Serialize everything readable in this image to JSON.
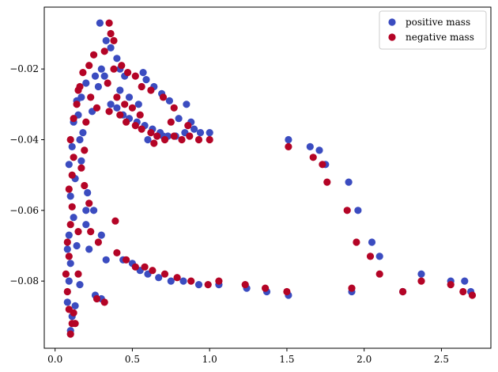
{
  "chart_data": {
    "type": "scatter",
    "title": "",
    "xlabel": "",
    "ylabel": "",
    "xlim": [
      -0.07,
      2.82
    ],
    "ylim": [
      -0.099,
      -0.0025
    ],
    "xticks": [
      0.0,
      0.5,
      1.0,
      1.5,
      2.0,
      2.5
    ],
    "xtick_labels": [
      "0.0",
      "0.5",
      "1.0",
      "1.5",
      "2.0",
      "2.5"
    ],
    "yticks": [
      -0.02,
      -0.04,
      -0.06,
      -0.08
    ],
    "ytick_labels": [
      "−0.02",
      "−0.04",
      "−0.06",
      "−0.08"
    ],
    "grid": false,
    "legend_position": "top-right",
    "series": [
      {
        "name": "positive mass",
        "color": "#3b4cc0",
        "points": [
          [
            0.29,
            -0.007
          ],
          [
            0.33,
            -0.012
          ],
          [
            0.36,
            -0.014
          ],
          [
            0.4,
            -0.017
          ],
          [
            0.3,
            -0.02
          ],
          [
            0.26,
            -0.022
          ],
          [
            0.2,
            -0.024
          ],
          [
            0.17,
            -0.028
          ],
          [
            0.15,
            -0.033
          ],
          [
            0.12,
            -0.035
          ],
          [
            0.11,
            -0.042
          ],
          [
            0.09,
            -0.047
          ],
          [
            0.13,
            -0.051
          ],
          [
            0.1,
            -0.056
          ],
          [
            0.12,
            -0.062
          ],
          [
            0.09,
            -0.067
          ],
          [
            0.08,
            -0.071
          ],
          [
            0.1,
            -0.075
          ],
          [
            0.09,
            -0.08
          ],
          [
            0.08,
            -0.086
          ],
          [
            0.11,
            -0.09
          ],
          [
            0.1,
            -0.094
          ],
          [
            0.24,
            -0.032
          ],
          [
            0.28,
            -0.025
          ],
          [
            0.32,
            -0.022
          ],
          [
            0.42,
            -0.02
          ],
          [
            0.45,
            -0.022
          ],
          [
            0.57,
            -0.021
          ],
          [
            0.59,
            -0.023
          ],
          [
            0.64,
            -0.025
          ],
          [
            0.69,
            -0.027
          ],
          [
            0.74,
            -0.029
          ],
          [
            0.85,
            -0.03
          ],
          [
            0.42,
            -0.026
          ],
          [
            0.48,
            -0.028
          ],
          [
            0.54,
            -0.03
          ],
          [
            0.36,
            -0.03
          ],
          [
            0.4,
            -0.031
          ],
          [
            0.44,
            -0.033
          ],
          [
            0.48,
            -0.034
          ],
          [
            0.53,
            -0.035
          ],
          [
            0.58,
            -0.036
          ],
          [
            0.63,
            -0.037
          ],
          [
            0.68,
            -0.038
          ],
          [
            0.73,
            -0.039
          ],
          [
            0.78,
            -0.039
          ],
          [
            0.84,
            -0.038
          ],
          [
            0.9,
            -0.037
          ],
          [
            0.94,
            -0.038
          ],
          [
            1.0,
            -0.038
          ],
          [
            0.8,
            -0.034
          ],
          [
            0.88,
            -0.035
          ],
          [
            0.6,
            -0.04
          ],
          [
            0.7,
            -0.039
          ],
          [
            1.51,
            -0.04
          ],
          [
            1.65,
            -0.042
          ],
          [
            1.71,
            -0.043
          ],
          [
            1.75,
            -0.047
          ],
          [
            1.9,
            -0.052
          ],
          [
            1.96,
            -0.06
          ],
          [
            2.05,
            -0.069
          ],
          [
            2.1,
            -0.073
          ],
          [
            2.37,
            -0.078
          ],
          [
            2.56,
            -0.08
          ],
          [
            2.65,
            -0.08
          ],
          [
            2.69,
            -0.083
          ],
          [
            0.25,
            -0.06
          ],
          [
            0.2,
            -0.064
          ],
          [
            0.3,
            -0.067
          ],
          [
            0.22,
            -0.071
          ],
          [
            0.33,
            -0.074
          ],
          [
            0.44,
            -0.074
          ],
          [
            0.5,
            -0.075
          ],
          [
            0.55,
            -0.077
          ],
          [
            0.6,
            -0.078
          ],
          [
            0.67,
            -0.079
          ],
          [
            0.75,
            -0.08
          ],
          [
            0.83,
            -0.08
          ],
          [
            0.93,
            -0.081
          ],
          [
            1.06,
            -0.081
          ],
          [
            1.24,
            -0.082
          ],
          [
            1.37,
            -0.083
          ],
          [
            1.51,
            -0.084
          ],
          [
            1.92,
            -0.083
          ],
          [
            2.25,
            -0.083
          ],
          [
            0.3,
            -0.085
          ],
          [
            0.26,
            -0.084
          ],
          [
            0.2,
            -0.06
          ],
          [
            0.17,
            -0.046
          ],
          [
            0.18,
            -0.038
          ],
          [
            0.14,
            -0.029
          ],
          [
            0.16,
            -0.04
          ],
          [
            0.21,
            -0.055
          ],
          [
            0.14,
            -0.07
          ],
          [
            0.16,
            -0.081
          ],
          [
            0.13,
            -0.087
          ]
        ]
      },
      {
        "name": "negative mass",
        "color": "#b40426",
        "points": [
          [
            0.35,
            -0.007
          ],
          [
            0.36,
            -0.01
          ],
          [
            0.38,
            -0.012
          ],
          [
            0.32,
            -0.015
          ],
          [
            0.25,
            -0.016
          ],
          [
            0.22,
            -0.019
          ],
          [
            0.18,
            -0.021
          ],
          [
            0.16,
            -0.025
          ],
          [
            0.14,
            -0.03
          ],
          [
            0.12,
            -0.034
          ],
          [
            0.1,
            -0.04
          ],
          [
            0.12,
            -0.045
          ],
          [
            0.11,
            -0.05
          ],
          [
            0.09,
            -0.054
          ],
          [
            0.11,
            -0.059
          ],
          [
            0.1,
            -0.064
          ],
          [
            0.08,
            -0.069
          ],
          [
            0.09,
            -0.073
          ],
          [
            0.07,
            -0.078
          ],
          [
            0.08,
            -0.083
          ],
          [
            0.09,
            -0.088
          ],
          [
            0.11,
            -0.092
          ],
          [
            0.1,
            -0.095
          ],
          [
            0.23,
            -0.028
          ],
          [
            0.27,
            -0.031
          ],
          [
            0.34,
            -0.024
          ],
          [
            0.38,
            -0.02
          ],
          [
            0.43,
            -0.019
          ],
          [
            0.47,
            -0.021
          ],
          [
            0.52,
            -0.022
          ],
          [
            0.56,
            -0.025
          ],
          [
            0.62,
            -0.026
          ],
          [
            0.7,
            -0.028
          ],
          [
            0.77,
            -0.031
          ],
          [
            0.4,
            -0.028
          ],
          [
            0.45,
            -0.03
          ],
          [
            0.5,
            -0.031
          ],
          [
            0.55,
            -0.033
          ],
          [
            0.35,
            -0.032
          ],
          [
            0.42,
            -0.033
          ],
          [
            0.46,
            -0.035
          ],
          [
            0.52,
            -0.036
          ],
          [
            0.56,
            -0.037
          ],
          [
            0.62,
            -0.038
          ],
          [
            0.66,
            -0.039
          ],
          [
            0.71,
            -0.04
          ],
          [
            0.77,
            -0.039
          ],
          [
            0.82,
            -0.04
          ],
          [
            0.87,
            -0.039
          ],
          [
            0.93,
            -0.04
          ],
          [
            1.0,
            -0.04
          ],
          [
            0.75,
            -0.035
          ],
          [
            0.86,
            -0.036
          ],
          [
            0.64,
            -0.041
          ],
          [
            1.51,
            -0.042
          ],
          [
            1.67,
            -0.045
          ],
          [
            1.73,
            -0.047
          ],
          [
            1.76,
            -0.052
          ],
          [
            1.89,
            -0.06
          ],
          [
            1.95,
            -0.069
          ],
          [
            2.04,
            -0.073
          ],
          [
            2.1,
            -0.078
          ],
          [
            2.37,
            -0.08
          ],
          [
            2.56,
            -0.081
          ],
          [
            2.64,
            -0.083
          ],
          [
            2.7,
            -0.084
          ],
          [
            0.39,
            -0.063
          ],
          [
            0.23,
            -0.066
          ],
          [
            0.28,
            -0.069
          ],
          [
            0.4,
            -0.072
          ],
          [
            0.46,
            -0.074
          ],
          [
            0.52,
            -0.076
          ],
          [
            0.58,
            -0.076
          ],
          [
            0.63,
            -0.077
          ],
          [
            0.71,
            -0.078
          ],
          [
            0.79,
            -0.079
          ],
          [
            0.88,
            -0.08
          ],
          [
            0.99,
            -0.081
          ],
          [
            1.06,
            -0.08
          ],
          [
            1.23,
            -0.081
          ],
          [
            1.36,
            -0.082
          ],
          [
            1.5,
            -0.083
          ],
          [
            1.92,
            -0.082
          ],
          [
            2.25,
            -0.083
          ],
          [
            0.32,
            -0.086
          ],
          [
            0.27,
            -0.085
          ],
          [
            0.22,
            -0.058
          ],
          [
            0.19,
            -0.043
          ],
          [
            0.2,
            -0.035
          ],
          [
            0.15,
            -0.026
          ],
          [
            0.17,
            -0.048
          ],
          [
            0.19,
            -0.053
          ],
          [
            0.15,
            -0.066
          ],
          [
            0.15,
            -0.078
          ],
          [
            0.12,
            -0.089
          ],
          [
            0.13,
            -0.092
          ]
        ]
      }
    ]
  }
}
